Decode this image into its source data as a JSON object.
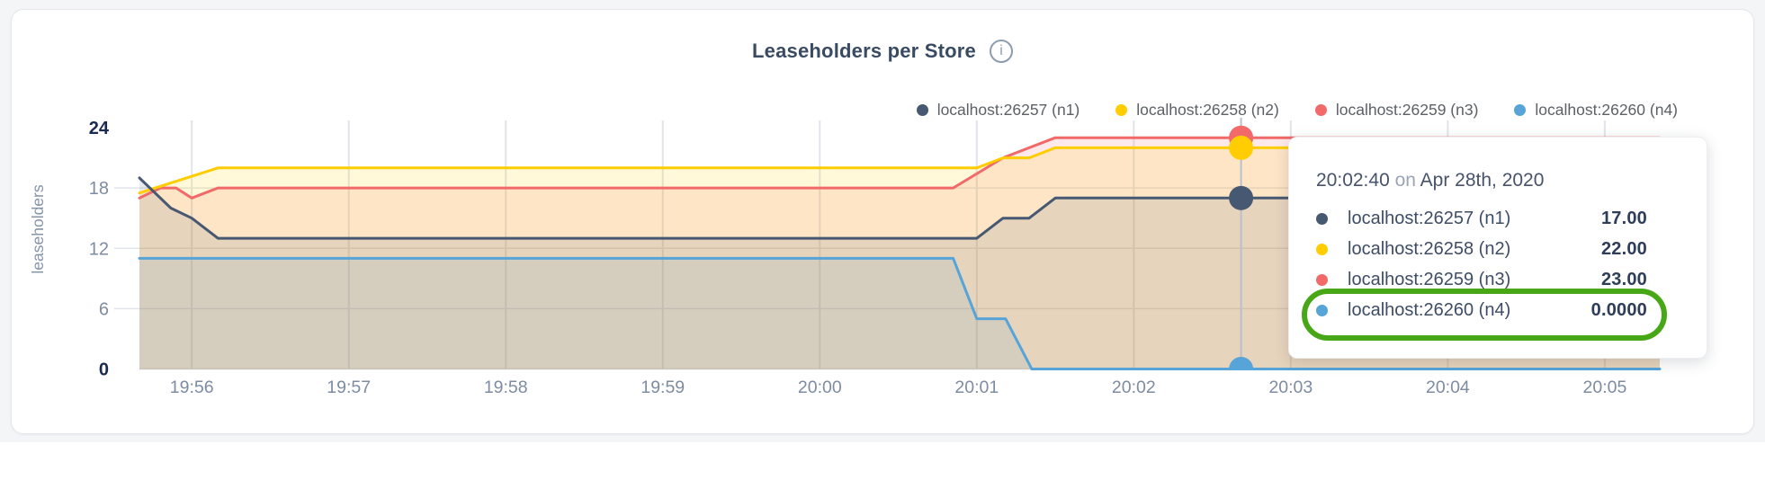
{
  "title": {
    "text": "Leaseholders per Store",
    "info_glyph": "i"
  },
  "legend": {
    "items": [
      {
        "label": "localhost:26257 (n1)",
        "color": "#475872"
      },
      {
        "label": "localhost:26258 (n2)",
        "color": "#ffcd02"
      },
      {
        "label": "localhost:26259 (n3)",
        "color": "#f16969"
      },
      {
        "label": "localhost:26260 (n4)",
        "color": "#56a4d8"
      }
    ]
  },
  "tooltip": {
    "time": "20:02:40",
    "preposition": "on",
    "date": "Apr 28th, 2020",
    "rows": [
      {
        "label": "localhost:26257 (n1)",
        "value": "17.00",
        "color": "#475872",
        "highlighted": false
      },
      {
        "label": "localhost:26258 (n2)",
        "value": "22.00",
        "color": "#ffcd02",
        "highlighted": false
      },
      {
        "label": "localhost:26259 (n3)",
        "value": "23.00",
        "color": "#f16969",
        "highlighted": false
      },
      {
        "label": "localhost:26260 (n4)",
        "value": "0.0000",
        "color": "#56a4d8",
        "highlighted": true
      }
    ],
    "highlight_color": "#48a717"
  },
  "chart_data": {
    "type": "line",
    "title": "Leaseholders per Store",
    "ylabel": "leaseholders",
    "xlabel": "",
    "ylim": [
      0,
      24
    ],
    "y_ticks": [
      0,
      6,
      12,
      18,
      24
    ],
    "y_ticks_emphasized": [
      0,
      24
    ],
    "x_tick_labels": [
      "19:56",
      "19:57",
      "19:58",
      "19:59",
      "20:00",
      "20:01",
      "20:02",
      "20:03",
      "20:04",
      "20:05"
    ],
    "x_domain_seconds": [
      0,
      581
    ],
    "x_first_tick_second": 20,
    "x_tick_interval_seconds": 60,
    "grid": true,
    "legend_position": "top-right",
    "area_fill": true,
    "series": [
      {
        "name": "localhost:26259 (n3)",
        "color": "#f16969",
        "fill_opacity": 0.15,
        "points": [
          [
            0,
            17
          ],
          [
            8,
            18
          ],
          [
            14,
            18
          ],
          [
            20,
            17
          ],
          [
            30,
            18
          ],
          [
            311,
            18
          ],
          [
            330,
            21
          ],
          [
            350,
            23
          ],
          [
            581,
            23
          ]
        ]
      },
      {
        "name": "localhost:26258 (n2)",
        "color": "#ffcd02",
        "fill_opacity": 0.15,
        "points": [
          [
            0,
            17.5
          ],
          [
            30,
            20
          ],
          [
            320,
            20
          ],
          [
            330,
            21
          ],
          [
            340,
            21
          ],
          [
            350,
            22
          ],
          [
            581,
            22
          ]
        ]
      },
      {
        "name": "localhost:26257 (n1)",
        "color": "#475872",
        "fill_opacity": 0.12,
        "points": [
          [
            0,
            19
          ],
          [
            12,
            16
          ],
          [
            20,
            15
          ],
          [
            30,
            13
          ],
          [
            320,
            13
          ],
          [
            330,
            15
          ],
          [
            340,
            15
          ],
          [
            350,
            17
          ],
          [
            581,
            17
          ]
        ]
      },
      {
        "name": "localhost:26260 (n4)",
        "color": "#56a4d8",
        "fill_opacity": 0.12,
        "points": [
          [
            0,
            11
          ],
          [
            311,
            11
          ],
          [
            320,
            5
          ],
          [
            331,
            5
          ],
          [
            341,
            0
          ],
          [
            581,
            0
          ]
        ]
      }
    ],
    "hover": {
      "time_seconds": 421,
      "time_label": "20:02:40 on Apr 28th, 2020",
      "values": [
        {
          "name": "localhost:26257 (n1)",
          "value": 17
        },
        {
          "name": "localhost:26258 (n2)",
          "value": 22
        },
        {
          "name": "localhost:26259 (n3)",
          "value": 23
        },
        {
          "name": "localhost:26260 (n4)",
          "value": 0
        }
      ]
    },
    "colors": {
      "grid": "#e1e4e9",
      "baseline": "#d8d5d4",
      "hover_line": "#b7c0cd",
      "tick_label": "#7d8ca2",
      "tick_label_bold": "#1b2b50",
      "axis_title": "#8694a9"
    }
  }
}
